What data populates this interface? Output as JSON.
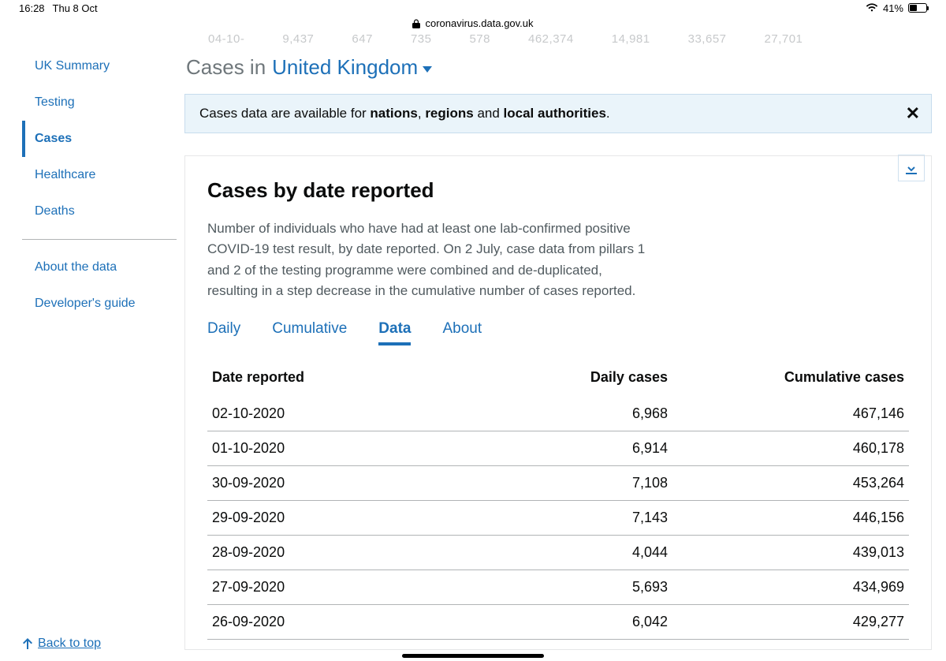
{
  "status_bar": {
    "time": "16:28",
    "date": "Thu 8 Oct",
    "battery_pct": "41%"
  },
  "browser": {
    "url": "coronavirus.data.gov.uk"
  },
  "sidebar": {
    "items": [
      {
        "label": "UK Summary",
        "active": false
      },
      {
        "label": "Testing",
        "active": false
      },
      {
        "label": "Cases",
        "active": true
      },
      {
        "label": "Healthcare",
        "active": false
      },
      {
        "label": "Deaths",
        "active": false
      }
    ],
    "secondary": [
      {
        "label": "About the data"
      },
      {
        "label": "Developer's guide"
      }
    ],
    "back_to_top": "Back to top"
  },
  "faded_row": [
    "04-10-",
    "9,437",
    "647",
    "735",
    "578",
    "462,374",
    "14,981",
    "33,657",
    "27,701"
  ],
  "heading": {
    "prefix": "Cases in",
    "region": "United Kingdom"
  },
  "banner": {
    "text_pre": "Cases data are available for ",
    "b1": "nations",
    "sep1": ", ",
    "b2": "regions",
    "sep2": " and ",
    "b3": "local authorities",
    "suffix": "."
  },
  "card": {
    "title": "Cases by date reported",
    "description": "Number of individuals who have had at least one lab-confirmed positive COVID-19 test result, by date reported. On 2 July, case data from pillars 1 and 2 of the testing programme were combined and de-duplicated, resulting in a step decrease in the cumulative number of cases reported.",
    "tabs": [
      "Daily",
      "Cumulative",
      "Data",
      "About"
    ],
    "active_tab": "Data",
    "table": {
      "columns": [
        "Date reported",
        "Daily cases",
        "Cumulative cases"
      ],
      "rows": [
        [
          "02-10-2020",
          "6,968",
          "467,146"
        ],
        [
          "01-10-2020",
          "6,914",
          "460,178"
        ],
        [
          "30-09-2020",
          "7,108",
          "453,264"
        ],
        [
          "29-09-2020",
          "7,143",
          "446,156"
        ],
        [
          "28-09-2020",
          "4,044",
          "439,013"
        ],
        [
          "27-09-2020",
          "5,693",
          "434,969"
        ],
        [
          "26-09-2020",
          "6,042",
          "429,277"
        ]
      ]
    }
  },
  "colors": {
    "link": "#1d70b8",
    "muted": "#505a5f",
    "banner_bg": "#eaf4fa",
    "border": "#b1b4b6"
  }
}
